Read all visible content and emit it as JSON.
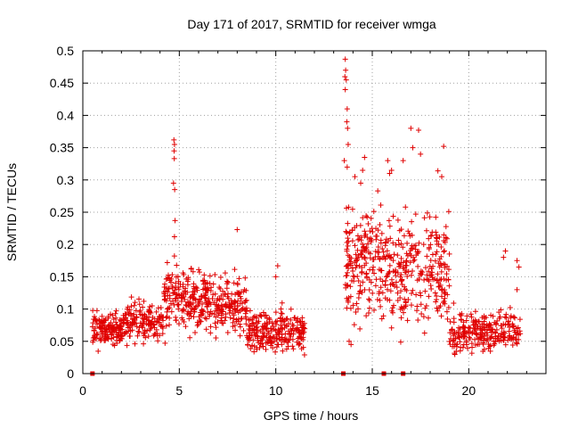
{
  "chart_data": {
    "type": "scatter",
    "title": "Day 171 of 2017, SRMTID for receiver wmga",
    "xlabel": "GPS time / hours",
    "ylabel": "SRMTID / TECUs",
    "xlim": [
      0,
      24
    ],
    "ylim": [
      0,
      0.5
    ],
    "xticks": [
      0,
      5,
      10,
      15,
      20
    ],
    "yticks": [
      0,
      0.05,
      0.1,
      0.15,
      0.2,
      0.25,
      0.3,
      0.35,
      0.4,
      0.45,
      0.5
    ],
    "xtick_labels": [
      "0",
      "5",
      "10",
      "15",
      "20"
    ],
    "ytick_labels": [
      "0",
      "0.05",
      "0.1",
      "0.15",
      "0.2",
      "0.25",
      "0.3",
      "0.35",
      "0.4",
      "0.45",
      "0.5"
    ],
    "grid": true,
    "marker": "+",
    "color": "#e00000",
    "segments": [
      {
        "x_start": 0.5,
        "x_end": 2.0,
        "y_center": 0.068,
        "y_spread": 0.025,
        "count": 140
      },
      {
        "x_start": 2.0,
        "x_end": 4.2,
        "y_center": 0.08,
        "y_spread": 0.03,
        "count": 160
      },
      {
        "x_start": 4.2,
        "x_end": 4.9,
        "y_center": 0.12,
        "y_spread": 0.05,
        "count": 60
      },
      {
        "x_start": 4.9,
        "x_end": 6.8,
        "y_center": 0.115,
        "y_spread": 0.045,
        "count": 170
      },
      {
        "x_start": 6.8,
        "x_end": 8.5,
        "y_center": 0.1,
        "y_spread": 0.045,
        "count": 140
      },
      {
        "x_start": 8.5,
        "x_end": 11.5,
        "y_center": 0.065,
        "y_spread": 0.03,
        "count": 240
      },
      {
        "x_start": 13.6,
        "x_end": 16.0,
        "y_center": 0.17,
        "y_spread": 0.08,
        "count": 220
      },
      {
        "x_start": 16.0,
        "x_end": 19.0,
        "y_center": 0.16,
        "y_spread": 0.08,
        "count": 240
      },
      {
        "x_start": 19.0,
        "x_end": 22.7,
        "y_center": 0.065,
        "y_spread": 0.03,
        "count": 260
      }
    ],
    "highlights": [
      {
        "x": 4.72,
        "y": 0.362
      },
      {
        "x": 4.75,
        "y": 0.355
      },
      {
        "x": 4.73,
        "y": 0.345
      },
      {
        "x": 4.74,
        "y": 0.333
      },
      {
        "x": 4.7,
        "y": 0.295
      },
      {
        "x": 4.76,
        "y": 0.285
      },
      {
        "x": 4.78,
        "y": 0.237
      },
      {
        "x": 4.75,
        "y": 0.212
      },
      {
        "x": 8.0,
        "y": 0.223
      },
      {
        "x": 10.1,
        "y": 0.167
      },
      {
        "x": 13.6,
        "y": 0.487
      },
      {
        "x": 13.62,
        "y": 0.47
      },
      {
        "x": 13.58,
        "y": 0.46
      },
      {
        "x": 13.65,
        "y": 0.455
      },
      {
        "x": 13.6,
        "y": 0.44
      },
      {
        "x": 13.7,
        "y": 0.41
      },
      {
        "x": 13.68,
        "y": 0.39
      },
      {
        "x": 13.72,
        "y": 0.38
      },
      {
        "x": 13.75,
        "y": 0.355
      },
      {
        "x": 13.55,
        "y": 0.33
      },
      {
        "x": 13.7,
        "y": 0.32
      },
      {
        "x": 14.1,
        "y": 0.305
      },
      {
        "x": 14.6,
        "y": 0.335
      },
      {
        "x": 14.5,
        "y": 0.315
      },
      {
        "x": 14.4,
        "y": 0.295
      },
      {
        "x": 15.8,
        "y": 0.33
      },
      {
        "x": 16.0,
        "y": 0.315
      },
      {
        "x": 15.9,
        "y": 0.31
      },
      {
        "x": 16.6,
        "y": 0.33
      },
      {
        "x": 17.0,
        "y": 0.38
      },
      {
        "x": 17.4,
        "y": 0.377
      },
      {
        "x": 17.1,
        "y": 0.35
      },
      {
        "x": 17.5,
        "y": 0.34
      },
      {
        "x": 18.4,
        "y": 0.314
      },
      {
        "x": 18.7,
        "y": 0.352
      },
      {
        "x": 18.6,
        "y": 0.305
      },
      {
        "x": 13.8,
        "y": 0.05
      },
      {
        "x": 13.9,
        "y": 0.045
      },
      {
        "x": 22.5,
        "y": 0.175
      },
      {
        "x": 22.6,
        "y": 0.165
      },
      {
        "x": 22.5,
        "y": 0.13
      },
      {
        "x": 21.9,
        "y": 0.19
      },
      {
        "x": 21.8,
        "y": 0.18
      },
      {
        "x": 10.0,
        "y": 0.15
      }
    ],
    "baseline_marks": [
      0.5,
      13.5,
      15.6,
      16.6
    ]
  }
}
